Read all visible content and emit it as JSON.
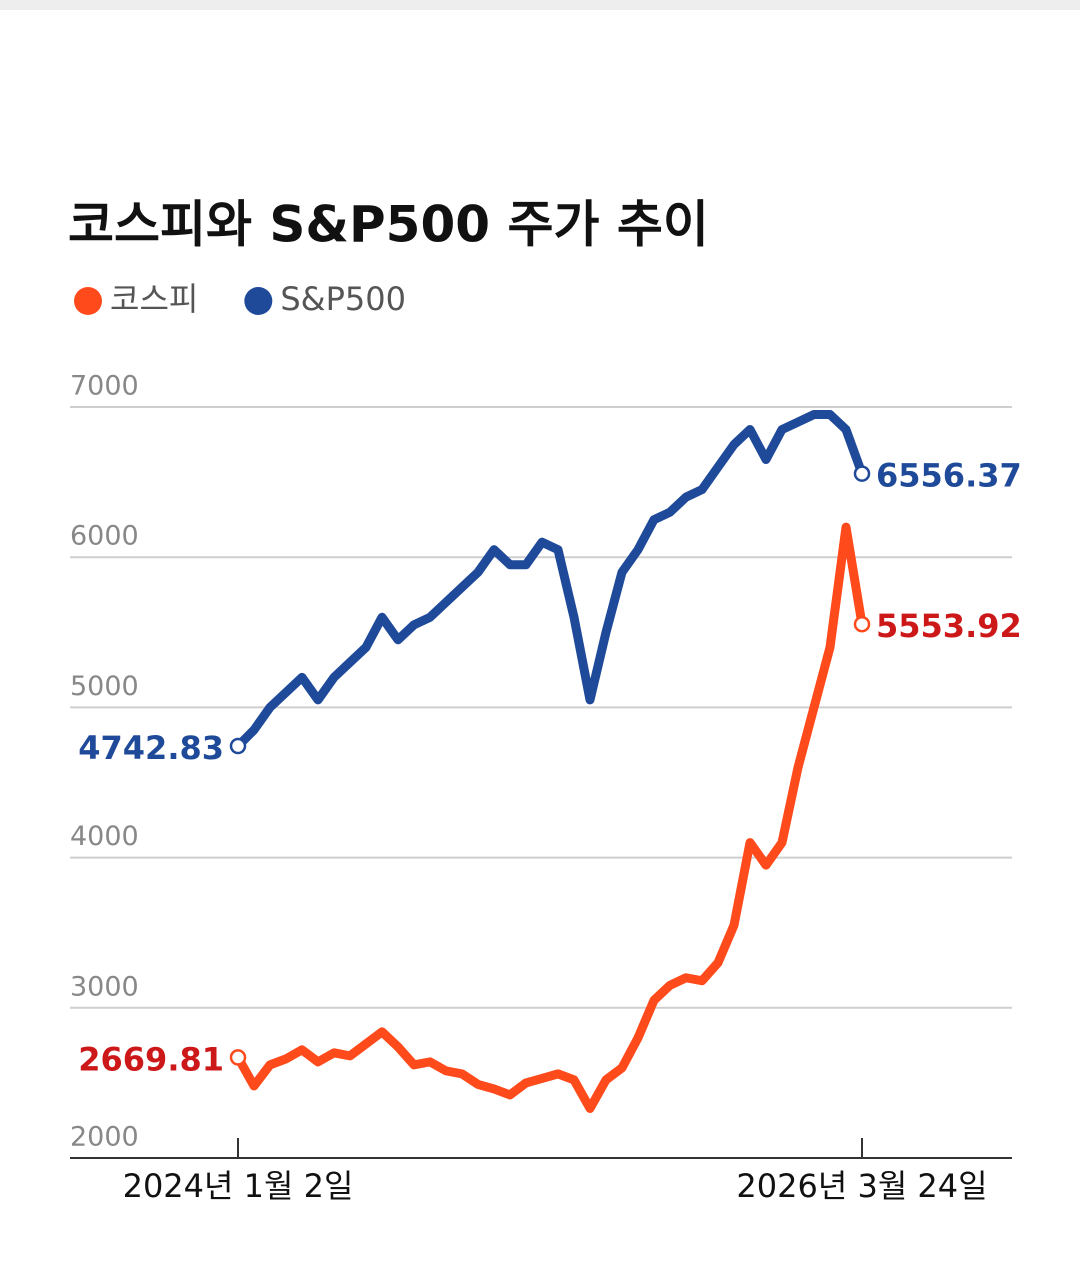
{
  "chart_data": {
    "type": "line",
    "title": "코스피와 S&P500 주가 추이",
    "categories": [
      "2024년 1월 2일",
      null,
      null,
      null,
      null,
      null,
      null,
      null,
      null,
      null,
      null,
      null,
      null,
      null,
      null,
      null,
      null,
      null,
      null,
      null,
      null,
      null,
      null,
      null,
      null,
      null,
      null,
      null,
      null,
      null,
      null,
      null,
      null,
      null,
      null,
      null,
      null,
      null,
      null,
      "2026년 3월 24일"
    ],
    "series": [
      {
        "name": "코스피",
        "color": "#ff4a1c",
        "label_color": "#cc1818",
        "values": [
          2669.81,
          2480,
          2620,
          2660,
          2720,
          2640,
          2700,
          2680,
          2760,
          2840,
          2740,
          2620,
          2640,
          2580,
          2560,
          2490,
          2460,
          2420,
          2500,
          2530,
          2560,
          2520,
          2330,
          2520,
          2600,
          2800,
          3050,
          3150,
          3200,
          3180,
          3300,
          3550,
          4100,
          3950,
          4100,
          4600,
          5000,
          5400,
          6200,
          5553.92
        ]
      },
      {
        "name": "S&P500",
        "color": "#1f4a9a",
        "label_color": "#1f4a9a",
        "values": [
          4742.83,
          4850,
          5000,
          5100,
          5200,
          5050,
          5200,
          5300,
          5400,
          5600,
          5450,
          5550,
          5600,
          5700,
          5800,
          5900,
          6050,
          5950,
          5950,
          6100,
          6050,
          5600,
          5050,
          5500,
          5900,
          6050,
          6250,
          6300,
          6400,
          6450,
          6600,
          6750,
          6850,
          6650,
          6850,
          6900,
          6950,
          6950,
          6850,
          6556.37
        ]
      }
    ],
    "ylim": [
      2000,
      7000
    ],
    "yticks": [
      2000,
      3000,
      4000,
      5000,
      6000,
      7000
    ],
    "grid": true
  }
}
